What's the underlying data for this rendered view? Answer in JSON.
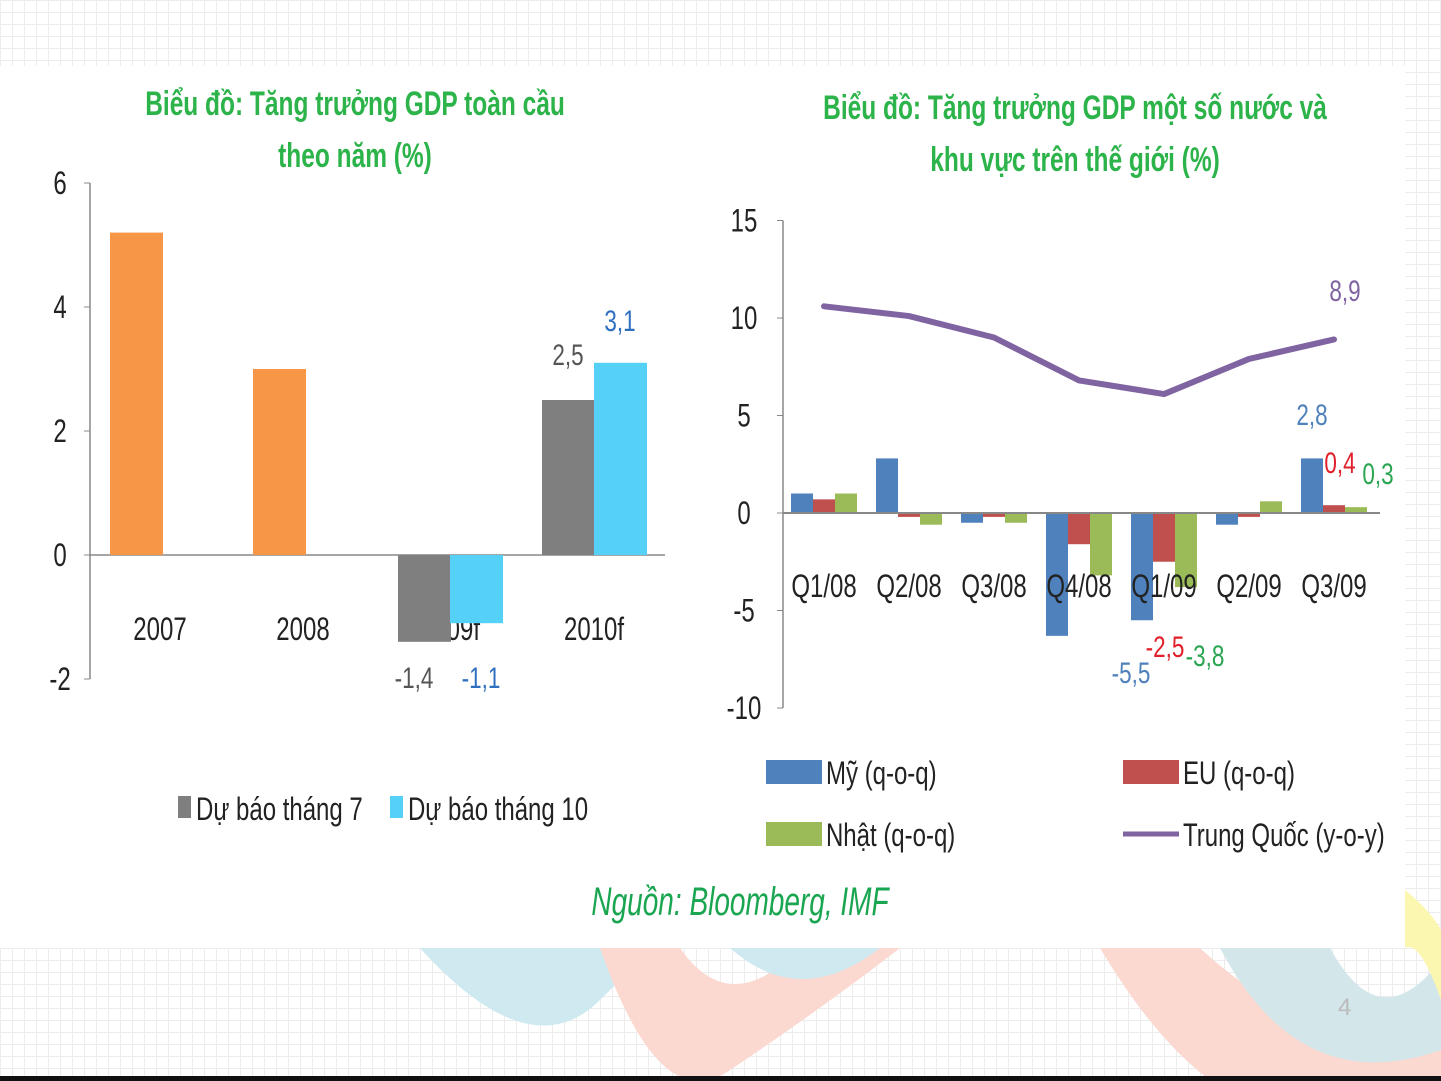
{
  "slide": {
    "page_number": "4",
    "source": "Nguồn: Bloomberg, IMF"
  },
  "colors": {
    "title": "#2cb34a",
    "orange": "#f79646",
    "gray": "#7f7f7f",
    "light_blue": "#55d0f6",
    "us": "#4f81bd",
    "eu": "#c0504d",
    "japan": "#9bbb59",
    "china": "#8064a2"
  },
  "chart_data": [
    {
      "type": "bar",
      "title_line1": "Biểu đồ: Tăng trưởng GDP toàn cầu",
      "title_line2": "theo năm (%)",
      "categories": [
        "2007",
        "2008",
        "2009f",
        "2010f"
      ],
      "series": [
        {
          "values": [
            5.2,
            3.0,
            null,
            null
          ],
          "color": "#f79646"
        },
        {
          "name": "Dự báo tháng 7",
          "values": [
            null,
            null,
            -1.4,
            2.5
          ],
          "color": "#7f7f7f",
          "labels": [
            null,
            null,
            "-1,4",
            "2,5"
          ],
          "label_color": "#555555"
        },
        {
          "name": "Dự báo tháng 10",
          "values": [
            null,
            null,
            -1.1,
            3.1
          ],
          "color": "#55d0f6",
          "labels": [
            null,
            null,
            "-1,1",
            "3,1"
          ],
          "label_color": "#2f6fc0"
        }
      ],
      "yticks": [
        "-2",
        "0",
        "2",
        "4",
        "6"
      ],
      "ylim": [
        -2,
        6
      ],
      "grid": false,
      "legend": "bottom"
    },
    {
      "type": "bar+line",
      "title_line1": "Biểu đồ: Tăng trưởng GDP một số nước và",
      "title_line2": "khu vực trên thế giới (%)",
      "categories": [
        "Q1/08",
        "Q2/08",
        "Q3/08",
        "Q4/08",
        "Q1/09",
        "Q2/09",
        "Q3/09"
      ],
      "series": [
        {
          "name": "Mỹ (q-o-q)",
          "type": "bar",
          "color": "#4f81bd",
          "values": [
            1.0,
            2.8,
            -0.5,
            -6.3,
            -5.5,
            -0.6,
            2.8
          ],
          "labels": [
            null,
            null,
            null,
            null,
            "-5,5",
            null,
            "2,8"
          ]
        },
        {
          "name": "EU (q-o-q)",
          "type": "bar",
          "color": "#c0504d",
          "values": [
            0.7,
            -0.2,
            -0.2,
            -1.6,
            -2.5,
            -0.2,
            0.4
          ],
          "labels": [
            null,
            null,
            null,
            null,
            "-2,5",
            null,
            "0,4"
          ]
        },
        {
          "name": "Nhật (q-o-q)",
          "type": "bar",
          "color": "#9bbb59",
          "values": [
            1.0,
            -0.6,
            -0.5,
            -3.2,
            -3.8,
            0.6,
            0.3
          ],
          "labels": [
            null,
            null,
            null,
            null,
            "-3,8",
            null,
            "0,3"
          ]
        },
        {
          "name": "Trung Quốc (y-o-y)",
          "type": "line",
          "color": "#8064a2",
          "values": [
            10.6,
            10.1,
            9.0,
            6.8,
            6.1,
            7.9,
            8.9
          ],
          "labels": [
            null,
            null,
            null,
            null,
            null,
            null,
            "8,9"
          ]
        }
      ],
      "yticks": [
        "-10",
        "-5",
        "0",
        "5",
        "10",
        "15"
      ],
      "ylim": [
        -10,
        15
      ],
      "grid": false,
      "legend": "bottom"
    }
  ]
}
